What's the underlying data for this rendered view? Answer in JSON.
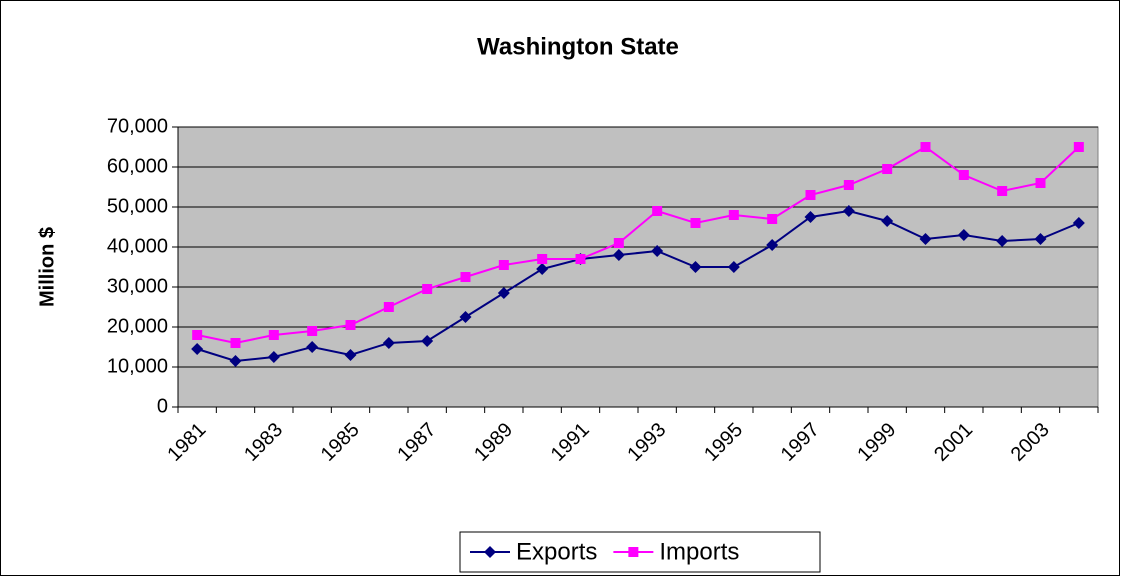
{
  "chart_data": {
    "type": "line",
    "title": "Washington State",
    "y_label": "Million $",
    "categories": [
      "1981",
      null,
      "1983",
      null,
      "1985",
      null,
      "1987",
      null,
      "1989",
      null,
      "1991",
      null,
      "1993",
      null,
      "1995",
      null,
      "1997",
      null,
      "1999",
      null,
      "2001",
      null,
      "2003",
      null
    ],
    "series": [
      {
        "name": "Exports",
        "color": "#000080",
        "values": [
          14500,
          11500,
          12500,
          15000,
          13000,
          16000,
          16500,
          22500,
          28500,
          34500,
          37000,
          38000,
          39000,
          35000,
          35000,
          40500,
          47500,
          49000,
          46500,
          42000,
          43000,
          41500,
          42000,
          46000
        ]
      },
      {
        "name": "Imports",
        "color": "#ff00ff",
        "values": [
          18000,
          16000,
          18000,
          19000,
          20500,
          25000,
          29500,
          32500,
          35500,
          37000,
          37000,
          41000,
          49000,
          46000,
          48000,
          47000,
          53000,
          55500,
          59500,
          65000,
          58000,
          54000,
          56000,
          65000
        ]
      }
    ],
    "ylim": [
      0,
      70000
    ],
    "yticks": [
      0,
      {
        "value": 10000,
        "label": "10,000"
      },
      {
        "value": 20000,
        "label": "20,000"
      },
      {
        "value": 30000,
        "label": "30,000"
      },
      {
        "value": 40000,
        "label": "40,000"
      },
      {
        "value": 50000,
        "label": "50,000"
      },
      {
        "value": 60000,
        "label": "60,000"
      },
      {
        "value": 70000,
        "label": "70,000"
      }
    ],
    "grid": true,
    "plot_background": "#c0c0c0",
    "legend": "bottom"
  }
}
